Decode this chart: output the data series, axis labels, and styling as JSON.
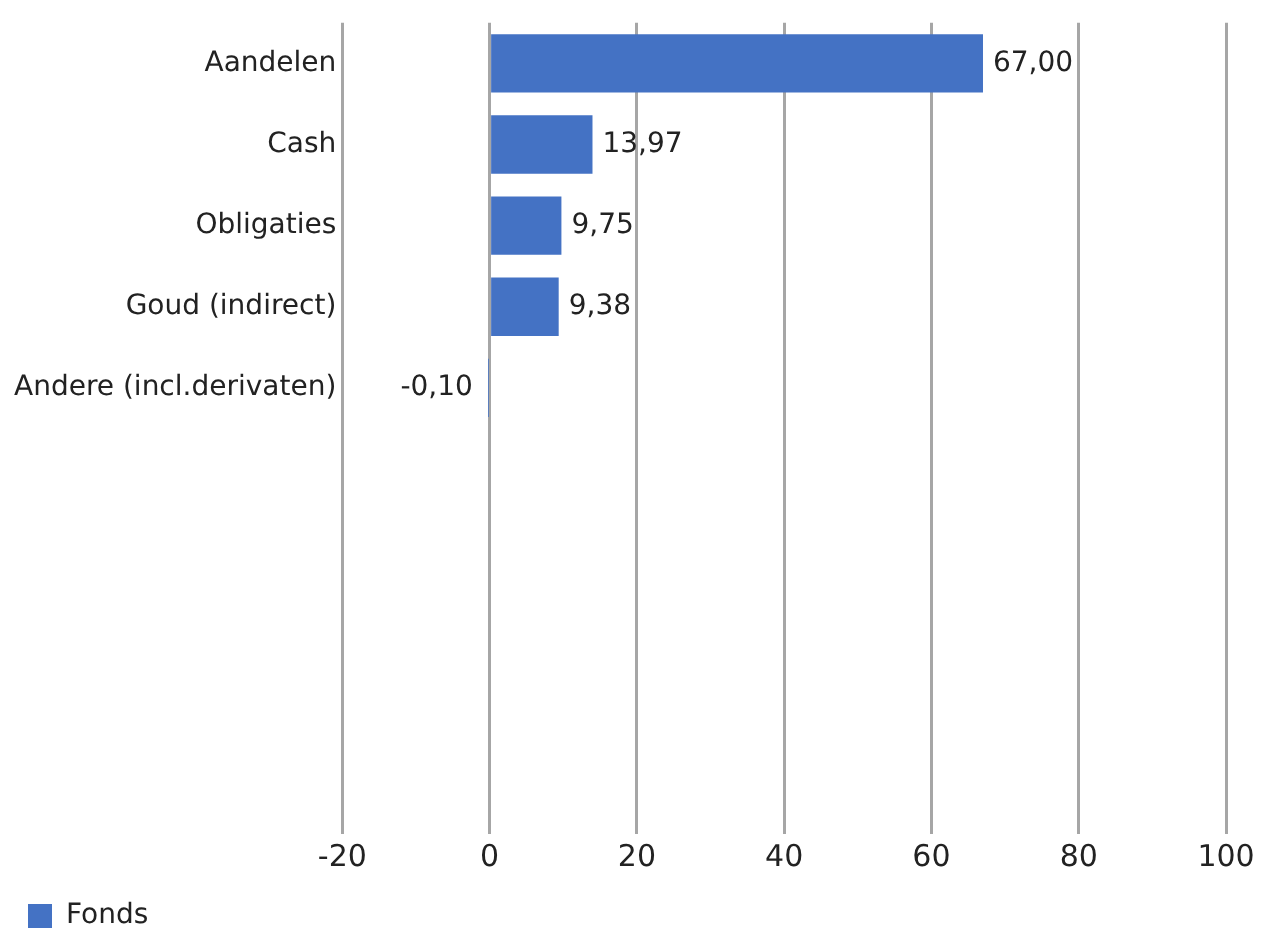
{
  "chart_data": {
    "type": "bar",
    "orientation": "horizontal",
    "categories": [
      "Aandelen",
      "Cash",
      "Obligaties",
      "Goud (indirect)",
      "Andere (incl.derivaten)",
      null,
      null,
      null,
      null,
      null
    ],
    "series": [
      {
        "name": "Fonds",
        "color": "#4472c4",
        "values": [
          67.0,
          13.97,
          9.75,
          9.38,
          -0.1,
          null,
          null,
          null,
          null,
          null
        ],
        "value_labels": [
          "67,00",
          "13,97",
          "9,75",
          "9,38",
          "-0,10",
          null,
          null,
          null,
          null,
          null
        ]
      }
    ],
    "xlim": [
      -20,
      100
    ],
    "xticks": [
      -20,
      0,
      20,
      40,
      60,
      80,
      100
    ],
    "grid": "x",
    "legend": "bottom"
  }
}
